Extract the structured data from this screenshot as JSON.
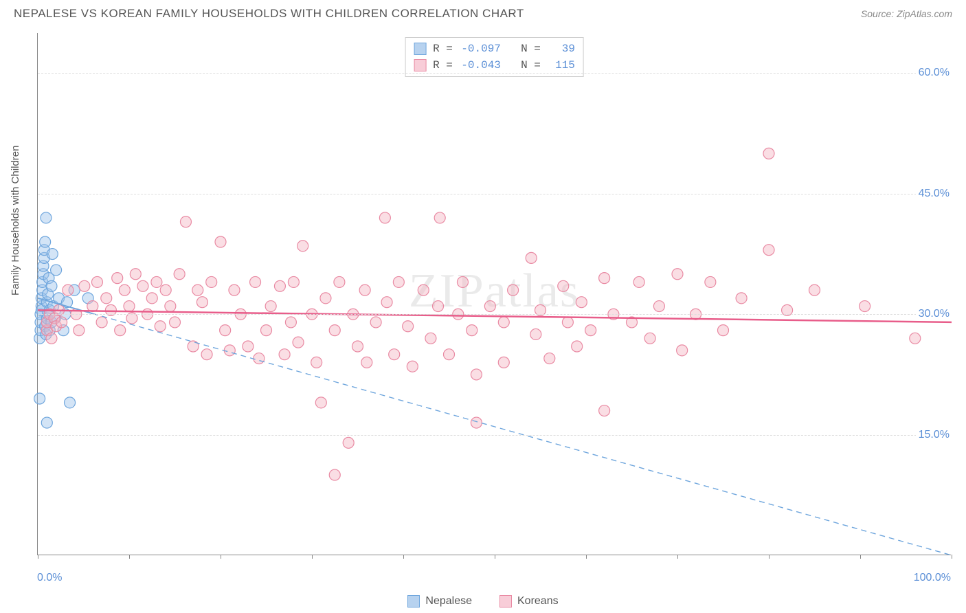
{
  "title": "NEPALESE VS KOREAN FAMILY HOUSEHOLDS WITH CHILDREN CORRELATION CHART",
  "source": "Source: ZipAtlas.com",
  "ylabel": "Family Households with Children",
  "watermark": "ZIPatlas",
  "chart": {
    "type": "scatter",
    "xlim": [
      0,
      100
    ],
    "ylim": [
      0,
      65
    ],
    "xlabel_min": "0.0%",
    "xlabel_max": "100.0%",
    "yticks": [
      {
        "v": 15,
        "label": "15.0%"
      },
      {
        "v": 30,
        "label": "30.0%"
      },
      {
        "v": 45,
        "label": "45.0%"
      },
      {
        "v": 60,
        "label": "60.0%"
      }
    ],
    "xticks": [
      0,
      10,
      20,
      30,
      40,
      50,
      60,
      70,
      80,
      90,
      100
    ],
    "marker_radius": 8,
    "background_color": "#ffffff",
    "grid_color": "#dddddd",
    "series": [
      {
        "name": "Nepalese",
        "fill": "#9ec3ea",
        "fill_opacity": 0.45,
        "stroke": "#6fa6dd",
        "swatch_fill": "#b7d2ef",
        "swatch_stroke": "#6fa6dd",
        "R": "-0.097",
        "N": "39",
        "trend": {
          "x1": 0,
          "y1": 32,
          "x2": 100,
          "y2": 0,
          "solid_until_x": 6,
          "color": "#6fa6dd",
          "width": 2
        },
        "points": [
          {
            "x": 0.2,
            "y": 27
          },
          {
            "x": 0.3,
            "y": 28
          },
          {
            "x": 0.3,
            "y": 29
          },
          {
            "x": 0.3,
            "y": 30
          },
          {
            "x": 0.4,
            "y": 31
          },
          {
            "x": 0.4,
            "y": 32
          },
          {
            "x": 0.4,
            "y": 30.5
          },
          {
            "x": 0.5,
            "y": 33
          },
          {
            "x": 0.5,
            "y": 34
          },
          {
            "x": 0.6,
            "y": 35
          },
          {
            "x": 0.6,
            "y": 36
          },
          {
            "x": 0.7,
            "y": 37
          },
          {
            "x": 0.7,
            "y": 38
          },
          {
            "x": 0.8,
            "y": 39
          },
          {
            "x": 0.8,
            "y": 28.5
          },
          {
            "x": 0.9,
            "y": 27.5
          },
          {
            "x": 0.9,
            "y": 42
          },
          {
            "x": 1.0,
            "y": 29.5
          },
          {
            "x": 1.0,
            "y": 31.5
          },
          {
            "x": 1.1,
            "y": 30
          },
          {
            "x": 1.1,
            "y": 32.5
          },
          {
            "x": 1.2,
            "y": 34.5
          },
          {
            "x": 1.3,
            "y": 28
          },
          {
            "x": 1.3,
            "y": 30.5
          },
          {
            "x": 1.5,
            "y": 29
          },
          {
            "x": 1.5,
            "y": 33.5
          },
          {
            "x": 1.6,
            "y": 37.5
          },
          {
            "x": 1.7,
            "y": 31
          },
          {
            "x": 1.9,
            "y": 29.5
          },
          {
            "x": 2.0,
            "y": 35.5
          },
          {
            "x": 2.3,
            "y": 32
          },
          {
            "x": 2.8,
            "y": 28
          },
          {
            "x": 3.0,
            "y": 30
          },
          {
            "x": 3.2,
            "y": 31.5
          },
          {
            "x": 4.0,
            "y": 33
          },
          {
            "x": 5.5,
            "y": 32
          },
          {
            "x": 1.0,
            "y": 16.5
          },
          {
            "x": 3.5,
            "y": 19
          },
          {
            "x": 0.2,
            "y": 19.5
          }
        ]
      },
      {
        "name": "Koreans",
        "fill": "#f4b6c4",
        "fill_opacity": 0.45,
        "stroke": "#e98aa3",
        "swatch_fill": "#f8cdd8",
        "swatch_stroke": "#e98aa3",
        "R": "-0.043",
        "N": "115",
        "trend": {
          "x1": 0,
          "y1": 30.5,
          "x2": 100,
          "y2": 29,
          "solid_until_x": 100,
          "color": "#e85d8a",
          "width": 2.5
        },
        "points": [
          {
            "x": 1,
            "y": 28
          },
          {
            "x": 1,
            "y": 29
          },
          {
            "x": 1.3,
            "y": 30
          },
          {
            "x": 1.5,
            "y": 27
          },
          {
            "x": 1.8,
            "y": 29.5
          },
          {
            "x": 2.0,
            "y": 28.5
          },
          {
            "x": 2.3,
            "y": 30.5
          },
          {
            "x": 2.6,
            "y": 29
          },
          {
            "x": 3.3,
            "y": 33
          },
          {
            "x": 4.2,
            "y": 30
          },
          {
            "x": 4.5,
            "y": 28
          },
          {
            "x": 5.1,
            "y": 33.5
          },
          {
            "x": 6,
            "y": 31
          },
          {
            "x": 6.5,
            "y": 34
          },
          {
            "x": 7,
            "y": 29
          },
          {
            "x": 7.5,
            "y": 32
          },
          {
            "x": 8,
            "y": 30.5
          },
          {
            "x": 8.7,
            "y": 34.5
          },
          {
            "x": 9,
            "y": 28
          },
          {
            "x": 9.5,
            "y": 33
          },
          {
            "x": 10,
            "y": 31
          },
          {
            "x": 10.3,
            "y": 29.5
          },
          {
            "x": 10.7,
            "y": 35
          },
          {
            "x": 11.5,
            "y": 33.5
          },
          {
            "x": 12,
            "y": 30
          },
          {
            "x": 12.5,
            "y": 32
          },
          {
            "x": 13,
            "y": 34
          },
          {
            "x": 13.4,
            "y": 28.5
          },
          {
            "x": 14,
            "y": 33
          },
          {
            "x": 14.5,
            "y": 31
          },
          {
            "x": 15,
            "y": 29
          },
          {
            "x": 15.5,
            "y": 35
          },
          {
            "x": 16.2,
            "y": 41.5
          },
          {
            "x": 17,
            "y": 26
          },
          {
            "x": 17.5,
            "y": 33
          },
          {
            "x": 18,
            "y": 31.5
          },
          {
            "x": 18.5,
            "y": 25
          },
          {
            "x": 19,
            "y": 34
          },
          {
            "x": 20,
            "y": 39
          },
          {
            "x": 20.5,
            "y": 28
          },
          {
            "x": 21,
            "y": 25.5
          },
          {
            "x": 21.5,
            "y": 33
          },
          {
            "x": 22.2,
            "y": 30
          },
          {
            "x": 23,
            "y": 26
          },
          {
            "x": 23.8,
            "y": 34
          },
          {
            "x": 24.2,
            "y": 24.5
          },
          {
            "x": 25,
            "y": 28
          },
          {
            "x": 25.5,
            "y": 31
          },
          {
            "x": 26.5,
            "y": 33.5
          },
          {
            "x": 27,
            "y": 25
          },
          {
            "x": 27.7,
            "y": 29
          },
          {
            "x": 28,
            "y": 34
          },
          {
            "x": 28.5,
            "y": 26.5
          },
          {
            "x": 29,
            "y": 38.5
          },
          {
            "x": 30,
            "y": 30
          },
          {
            "x": 30.5,
            "y": 24
          },
          {
            "x": 31,
            "y": 19
          },
          {
            "x": 31.5,
            "y": 32
          },
          {
            "x": 32.5,
            "y": 28
          },
          {
            "x": 33,
            "y": 34
          },
          {
            "x": 32.5,
            "y": 10
          },
          {
            "x": 34,
            "y": 14
          },
          {
            "x": 34.5,
            "y": 30
          },
          {
            "x": 35,
            "y": 26
          },
          {
            "x": 35.8,
            "y": 33
          },
          {
            "x": 36,
            "y": 24
          },
          {
            "x": 37,
            "y": 29
          },
          {
            "x": 38,
            "y": 42
          },
          {
            "x": 38.2,
            "y": 31.5
          },
          {
            "x": 39,
            "y": 25
          },
          {
            "x": 39.5,
            "y": 34
          },
          {
            "x": 40.5,
            "y": 28.5
          },
          {
            "x": 41,
            "y": 23.5
          },
          {
            "x": 42.2,
            "y": 33
          },
          {
            "x": 43,
            "y": 27
          },
          {
            "x": 43.8,
            "y": 31
          },
          {
            "x": 44,
            "y": 42
          },
          {
            "x": 45,
            "y": 25
          },
          {
            "x": 46,
            "y": 30
          },
          {
            "x": 46.5,
            "y": 34
          },
          {
            "x": 47.5,
            "y": 28
          },
          {
            "x": 48,
            "y": 22.5
          },
          {
            "x": 48,
            "y": 16.5
          },
          {
            "x": 49.5,
            "y": 31
          },
          {
            "x": 51,
            "y": 29
          },
          {
            "x": 51,
            "y": 24
          },
          {
            "x": 52,
            "y": 33
          },
          {
            "x": 54,
            "y": 37
          },
          {
            "x": 54.5,
            "y": 27.5
          },
          {
            "x": 55,
            "y": 30.5
          },
          {
            "x": 56,
            "y": 24.5
          },
          {
            "x": 57.5,
            "y": 33.5
          },
          {
            "x": 58,
            "y": 29
          },
          {
            "x": 59,
            "y": 26
          },
          {
            "x": 59.5,
            "y": 31.5
          },
          {
            "x": 60.5,
            "y": 28
          },
          {
            "x": 62,
            "y": 34.5
          },
          {
            "x": 62,
            "y": 18
          },
          {
            "x": 63,
            "y": 30
          },
          {
            "x": 65,
            "y": 29
          },
          {
            "x": 65.8,
            "y": 34
          },
          {
            "x": 67,
            "y": 27
          },
          {
            "x": 68,
            "y": 31
          },
          {
            "x": 70,
            "y": 35
          },
          {
            "x": 70.5,
            "y": 25.5
          },
          {
            "x": 72,
            "y": 30
          },
          {
            "x": 73.6,
            "y": 34
          },
          {
            "x": 75,
            "y": 28
          },
          {
            "x": 77,
            "y": 32
          },
          {
            "x": 80,
            "y": 38
          },
          {
            "x": 80,
            "y": 50
          },
          {
            "x": 82,
            "y": 30.5
          },
          {
            "x": 85,
            "y": 33
          },
          {
            "x": 90.5,
            "y": 31
          },
          {
            "x": 96,
            "y": 27
          }
        ]
      }
    ]
  }
}
